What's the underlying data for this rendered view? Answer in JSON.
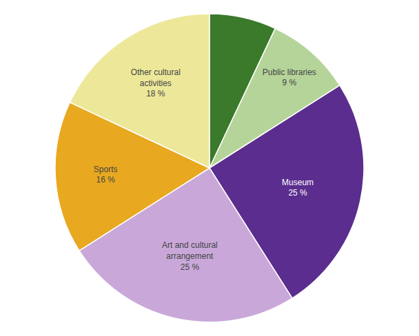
{
  "chart_data": {
    "type": "pie",
    "categories": [
      null,
      "Public libraries",
      "Museum",
      "Art and cultural\narrangement",
      "Sports",
      "Other cultural\nactivities"
    ],
    "values": [
      7,
      9,
      25,
      25,
      16,
      18
    ],
    "value_labels": [
      null,
      "9 %",
      "25 %",
      "25 %",
      "16 %",
      "18 %"
    ],
    "colors": [
      "#3A7A2A",
      "#B5D49A",
      "#5B2D8E",
      "#C9A8D9",
      "#E8A820",
      "#EDE899"
    ],
    "data_labels": true
  }
}
